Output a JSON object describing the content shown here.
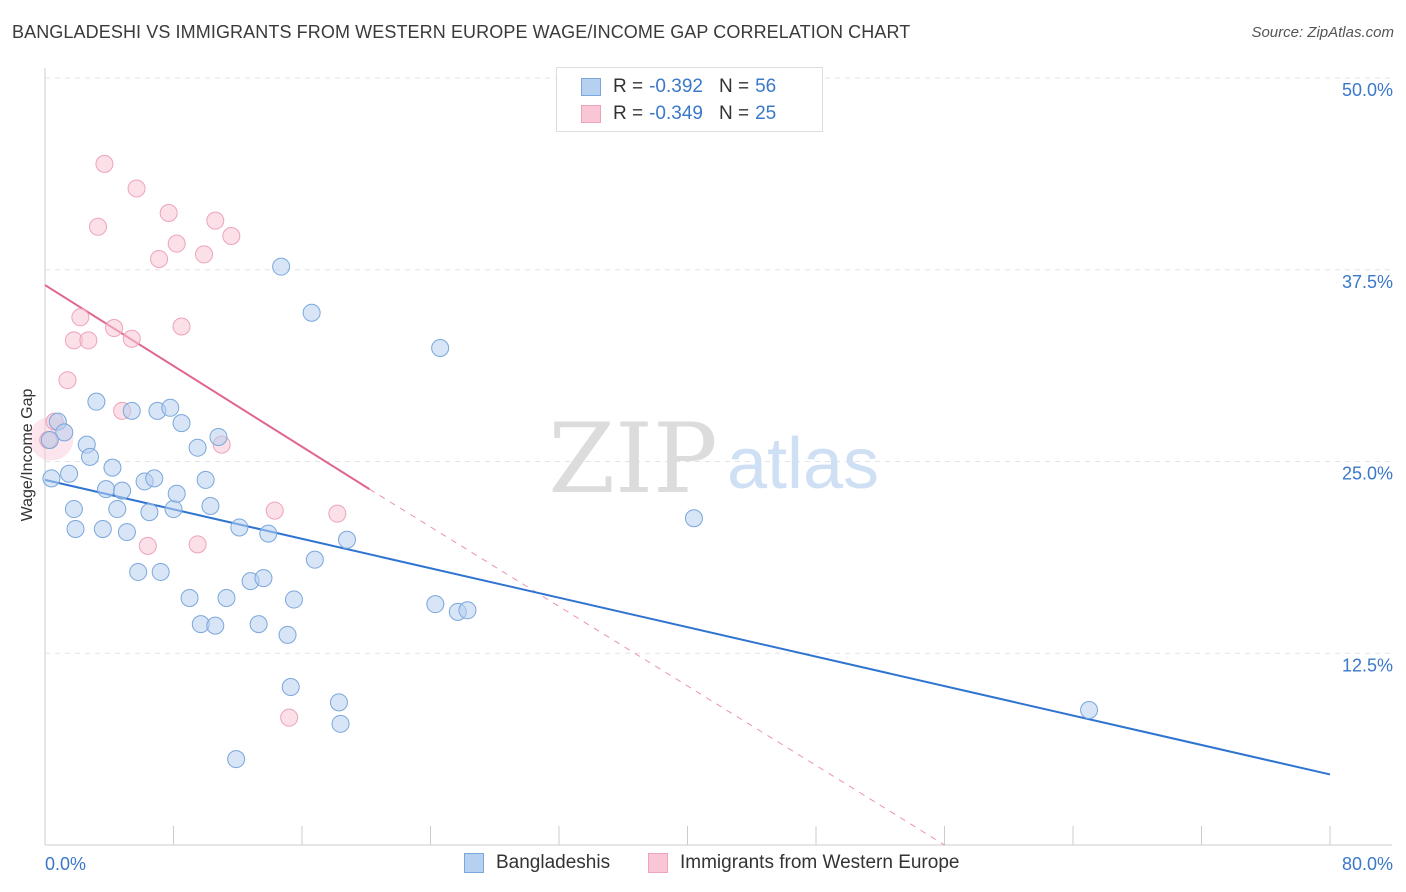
{
  "title": "BANGLADESHI VS IMMIGRANTS FROM WESTERN EUROPE WAGE/INCOME GAP CORRELATION CHART",
  "source": "Source: ZipAtlas.com",
  "watermark": {
    "zip": "ZIP",
    "atlas": "atlas"
  },
  "legend": {
    "rows": [
      {
        "r_label": "R =",
        "r_value": "-0.392",
        "n_label": "N =",
        "n_value": "56"
      },
      {
        "r_label": "R =",
        "r_value": "-0.349",
        "n_label": "N =",
        "n_value": "25"
      }
    ]
  },
  "colors": {
    "blue_fill": "#b6d0f0",
    "blue_stroke": "#7ba7dc",
    "blue_line": "#2f74d0",
    "pink_fill": "#f8c6d4",
    "pink_stroke": "#eea3bb",
    "pink_line": "#e0668f",
    "tick_label": "#3a78c9",
    "grid": "#e3e3e3"
  },
  "chart_data": {
    "type": "scatter",
    "title": "BANGLADESHI VS IMMIGRANTS FROM WESTERN EUROPE WAGE/INCOME GAP CORRELATION CHART",
    "xlabel": "",
    "ylabel": "Wage/Income Gap",
    "xlim": [
      0,
      80
    ],
    "ylim": [
      0,
      50
    ],
    "x_tick_labels": [
      "0.0%",
      "80.0%"
    ],
    "y_tick_values": [
      12.5,
      25.0,
      37.5,
      50.0
    ],
    "y_tick_labels": [
      "12.5%",
      "25.0%",
      "37.5%",
      "50.0%"
    ],
    "grid": true,
    "legend_position": "top-center",
    "series": [
      {
        "name": "Bangladeshis",
        "color": "#7ba7dc",
        "trend": {
          "x": [
            0,
            80
          ],
          "y": [
            23.8,
            4.6
          ],
          "style": "solid"
        },
        "points": [
          [
            0.4,
            23.9
          ],
          [
            0.8,
            27.6
          ],
          [
            1.2,
            26.9
          ],
          [
            1.5,
            24.2
          ],
          [
            1.8,
            21.9
          ],
          [
            1.9,
            20.6
          ],
          [
            2.6,
            26.1
          ],
          [
            2.8,
            25.3
          ],
          [
            3.2,
            28.9
          ],
          [
            3.6,
            20.6
          ],
          [
            3.8,
            23.2
          ],
          [
            4.2,
            24.6
          ],
          [
            4.5,
            21.9
          ],
          [
            4.8,
            23.1
          ],
          [
            5.1,
            20.4
          ],
          [
            5.4,
            28.3
          ],
          [
            5.8,
            17.8
          ],
          [
            6.2,
            23.7
          ],
          [
            6.5,
            21.7
          ],
          [
            6.8,
            23.9
          ],
          [
            7.0,
            28.3
          ],
          [
            7.2,
            17.8
          ],
          [
            7.8,
            28.5
          ],
          [
            8.0,
            21.9
          ],
          [
            8.2,
            22.9
          ],
          [
            8.5,
            27.5
          ],
          [
            9.0,
            16.1
          ],
          [
            9.5,
            25.9
          ],
          [
            9.7,
            14.4
          ],
          [
            10.0,
            23.8
          ],
          [
            10.3,
            22.1
          ],
          [
            10.6,
            14.3
          ],
          [
            10.8,
            26.6
          ],
          [
            11.3,
            16.1
          ],
          [
            11.9,
            5.6
          ],
          [
            12.1,
            20.7
          ],
          [
            12.8,
            17.2
          ],
          [
            13.3,
            14.4
          ],
          [
            13.6,
            17.4
          ],
          [
            13.9,
            20.3
          ],
          [
            14.7,
            37.7
          ],
          [
            15.1,
            13.7
          ],
          [
            15.3,
            10.3
          ],
          [
            15.5,
            16.0
          ],
          [
            16.6,
            34.7
          ],
          [
            16.8,
            18.6
          ],
          [
            18.3,
            9.3
          ],
          [
            18.4,
            7.9
          ],
          [
            18.8,
            19.9
          ],
          [
            24.3,
            15.7
          ],
          [
            24.6,
            32.4
          ],
          [
            25.7,
            15.2
          ],
          [
            26.3,
            15.3
          ],
          [
            40.4,
            21.3
          ],
          [
            65.0,
            8.8
          ],
          [
            0.3,
            26.4
          ]
        ]
      },
      {
        "name": "Immigrants from Western Europe",
        "color": "#eea3bb",
        "trend": {
          "x": [
            0,
            20.2
          ],
          "y": [
            36.5,
            23.2
          ],
          "style": "solid",
          "dashed_extension_to": [
            56,
            0
          ]
        },
        "points": [
          [
            0.2,
            26.4
          ],
          [
            0.6,
            27.6
          ],
          [
            1.4,
            30.3
          ],
          [
            1.8,
            32.9
          ],
          [
            2.2,
            34.4
          ],
          [
            2.7,
            32.9
          ],
          [
            3.3,
            40.3
          ],
          [
            3.7,
            44.4
          ],
          [
            4.3,
            33.7
          ],
          [
            4.8,
            28.3
          ],
          [
            5.4,
            33.0
          ],
          [
            5.7,
            42.8
          ],
          [
            6.4,
            19.5
          ],
          [
            7.1,
            38.2
          ],
          [
            7.7,
            41.2
          ],
          [
            8.2,
            39.2
          ],
          [
            8.5,
            33.8
          ],
          [
            9.5,
            19.6
          ],
          [
            9.9,
            38.5
          ],
          [
            10.6,
            40.7
          ],
          [
            11.0,
            26.1
          ],
          [
            11.6,
            39.7
          ],
          [
            14.3,
            21.8
          ],
          [
            15.2,
            8.3
          ],
          [
            18.2,
            21.6
          ]
        ]
      }
    ]
  },
  "bottom_legend": [
    {
      "label": "Bangladeshis"
    },
    {
      "label": "Immigrants from Western Europe"
    }
  ]
}
